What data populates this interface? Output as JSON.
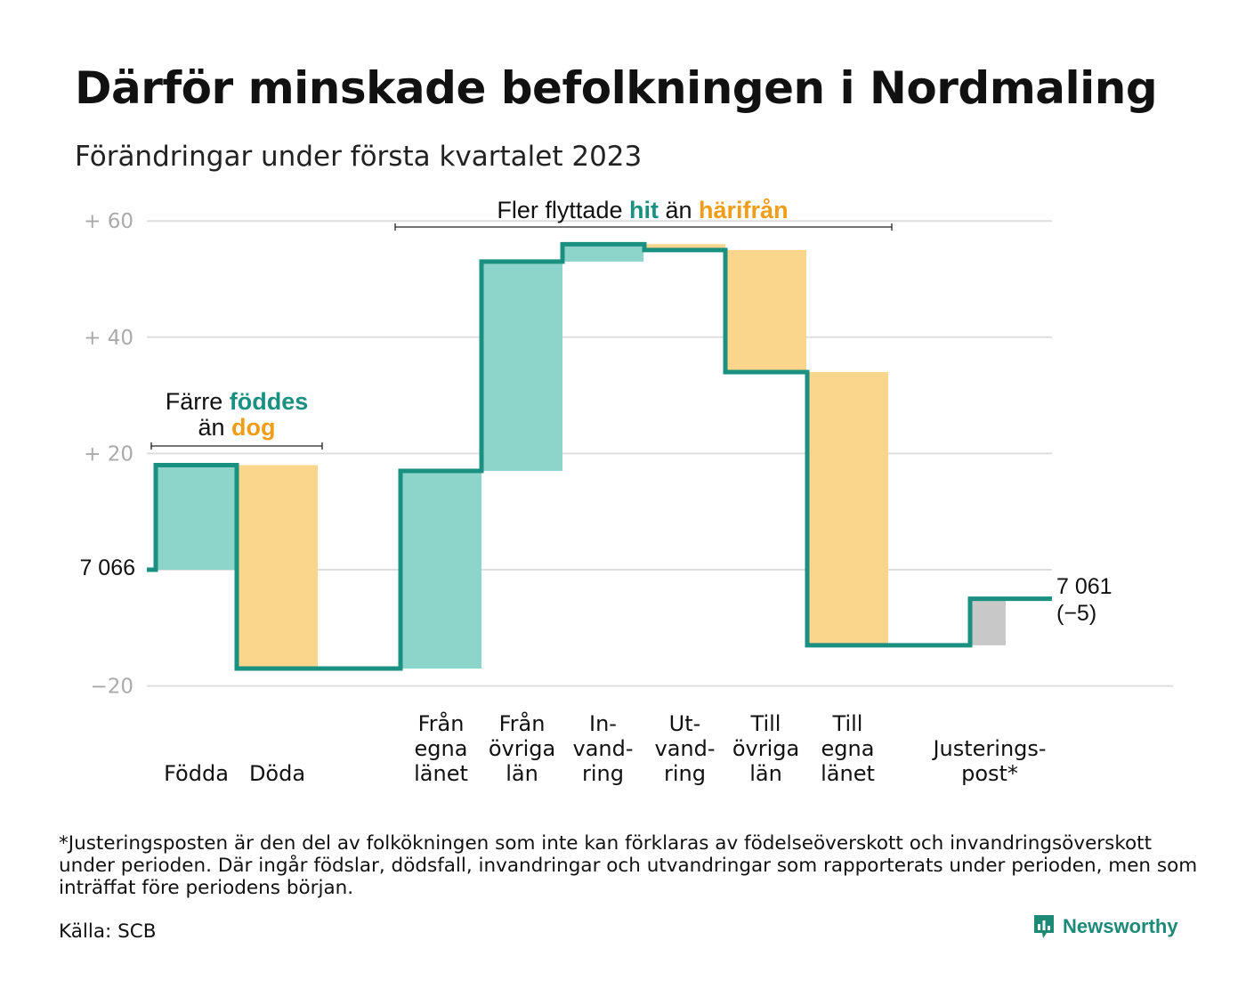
{
  "title": "Därför minskade befolkningen i Nordmaling",
  "subtitle": "Förändringar under första kvartalet 2023",
  "colors": {
    "line": "#1a9080",
    "increase": "#8dd5cb",
    "decrease": "#fad58c",
    "adjustment": "#c8c8c8",
    "hit": "#1a9080",
    "harifran": "#f29d1a",
    "grid": "#dddddd",
    "tick": "#aaaaaa"
  },
  "chart_data": {
    "type": "waterfall",
    "title": "Därför minskade befolkningen i Nordmaling",
    "subtitle": "Förändringar under första kvartalet 2023",
    "baseline": 7066,
    "baseline_label": "7 066",
    "end_value": 7061,
    "end_label": "7 061",
    "end_change_label": "(−5)",
    "yticks": [
      {
        "value": 60,
        "label": "+ 60"
      },
      {
        "value": 40,
        "label": "+ 40"
      },
      {
        "value": 20,
        "label": "+ 20"
      },
      {
        "value": -20,
        "label": "−20"
      }
    ],
    "ylim": [
      -20,
      60
    ],
    "grid": true,
    "steps": [
      {
        "category": "Födda",
        "lines": [
          "Födda"
        ],
        "change": 18,
        "kind": "increase"
      },
      {
        "category": "Döda",
        "lines": [
          "Döda"
        ],
        "change": -35,
        "kind": "decrease"
      },
      {
        "category": "Från egna länet",
        "lines": [
          "Från",
          "egna",
          "länet"
        ],
        "change": 34,
        "kind": "increase"
      },
      {
        "category": "Från övriga län",
        "lines": [
          "Från",
          "övriga",
          "län"
        ],
        "change": 36,
        "kind": "increase"
      },
      {
        "category": "In-vandring",
        "lines": [
          "In-",
          "vand-",
          "ring"
        ],
        "change": 3,
        "kind": "increase"
      },
      {
        "category": "Ut-vandring",
        "lines": [
          "Ut-",
          "vand-",
          "ring"
        ],
        "change": -1,
        "kind": "decrease"
      },
      {
        "category": "Till övriga län",
        "lines": [
          "Till",
          "övriga",
          "län"
        ],
        "change": -21,
        "kind": "decrease"
      },
      {
        "category": "Till egna länet",
        "lines": [
          "Till",
          "egna",
          "länet"
        ],
        "change": -47,
        "kind": "decrease"
      },
      {
        "category": "Justeringspost*",
        "lines": [
          "Justerings-",
          "post*"
        ],
        "change": 8,
        "kind": "adjustment"
      }
    ],
    "annotations": {
      "births": {
        "parts": [
          "Färre ",
          "föddes",
          "än ",
          "dog"
        ]
      },
      "migration": {
        "parts": [
          "Fler flyttade ",
          "hit",
          " än ",
          "härifrån"
        ]
      }
    }
  },
  "footnote": "*Justeringsposten är den del av folkökningen som inte kan förklaras av födelseöverskott och invandringsöverskott under perioden. Där ingår födslar, dödsfall, invandringar och utvandringar som rapporterats under perioden, men som inträffat före periodens början.",
  "source": "Källa: SCB",
  "brand": "Newsworthy"
}
